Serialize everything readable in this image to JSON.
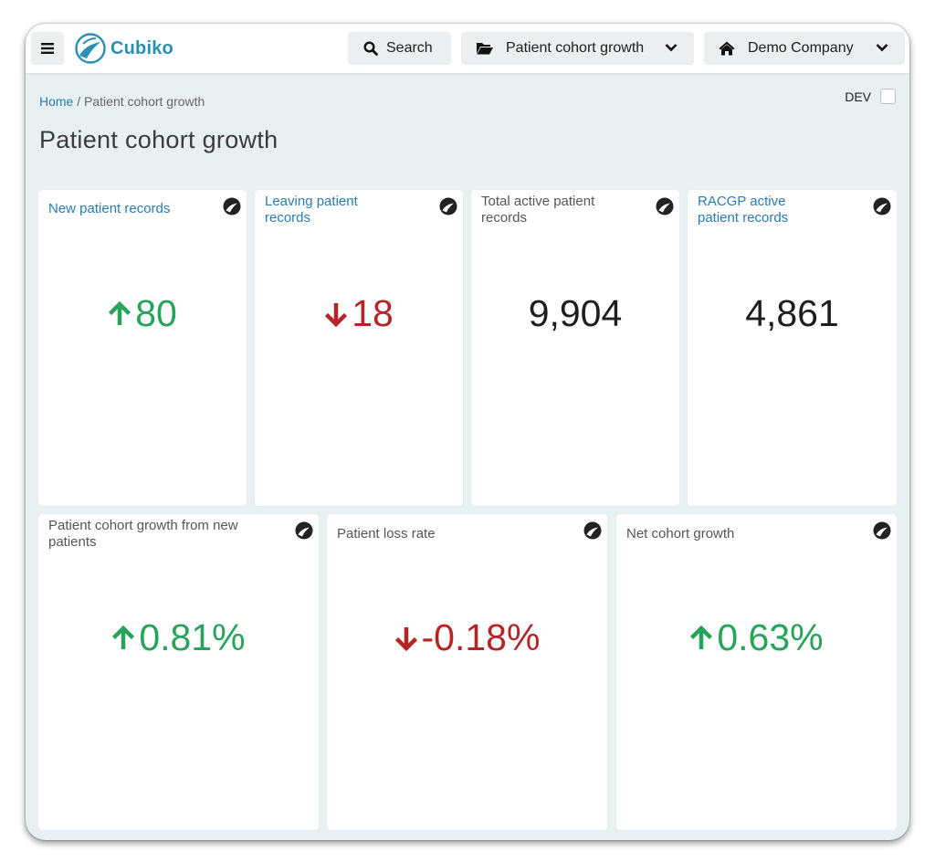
{
  "app": {
    "logo_text": "Cubiko"
  },
  "topbar": {
    "search_label": "Search",
    "dashboard_select": "Patient cohort growth",
    "company_select": "Demo Company",
    "icons": [
      "menu-icon",
      "cubiko-logo-icon",
      "search-icon",
      "folder-open-icon",
      "chevron-down-icon",
      "home-icon",
      "chevron-down-icon"
    ]
  },
  "breadcrumb": {
    "home": "Home",
    "separator": " / ",
    "current": "Patient cohort growth"
  },
  "dev_toggle": {
    "label": "DEV",
    "checked": false
  },
  "page_title": "Patient cohort growth",
  "metrics_row1": [
    {
      "title": "New patient records",
      "value": "80",
      "trend": "up",
      "link": true
    },
    {
      "title": "Leaving patient records",
      "value": "18",
      "trend": "down",
      "link": true
    },
    {
      "title": "Total active patient records",
      "value": "9,904",
      "trend": "none",
      "link": false
    },
    {
      "title": "RACGP active patient records",
      "value": "4,861",
      "trend": "none",
      "link": true
    }
  ],
  "metrics_row2": [
    {
      "title": "Patient cohort growth from new patients",
      "value": "0.81%",
      "trend": "up"
    },
    {
      "title": "Patient loss rate",
      "value": "-0.18%",
      "trend": "down"
    },
    {
      "title": "Net cohort growth",
      "value": "0.63%",
      "trend": "up"
    }
  ],
  "colors": {
    "brand": "#2a8fb5",
    "link": "#2b7bb3",
    "positive": "#27a35a",
    "negative": "#b52528",
    "background": "#e8f0f1"
  }
}
